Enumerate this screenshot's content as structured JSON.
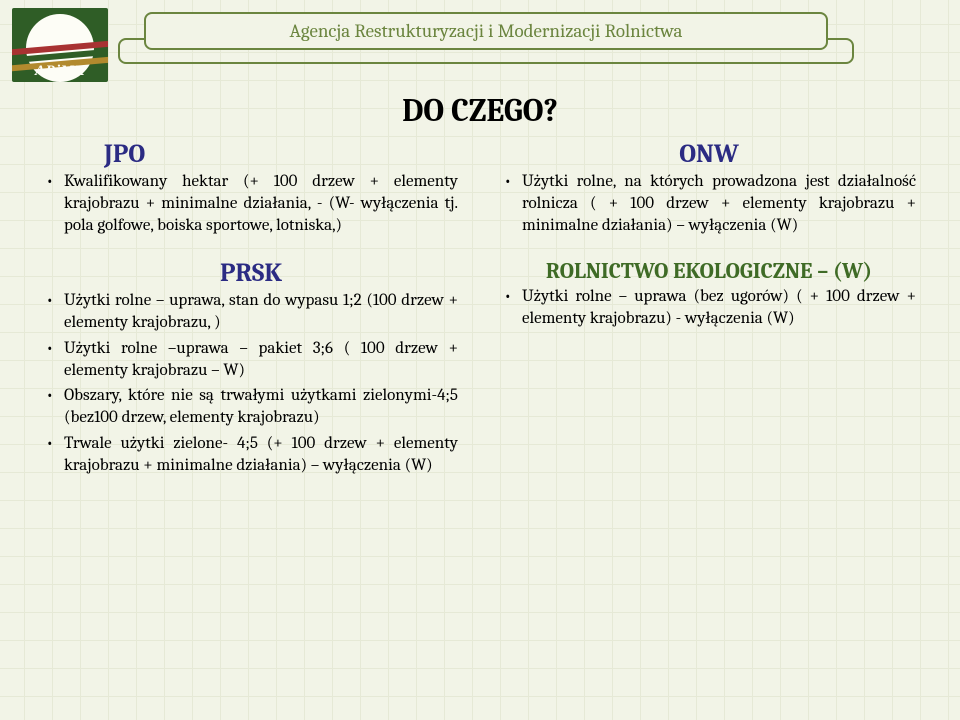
{
  "header": {
    "agency_name": "Agencja Restrukturyzacji i Modernizacji Rolnictwa",
    "logo_text": "ARiMR"
  },
  "title": "DO CZEGO?",
  "left": {
    "section1": {
      "heading": "JPO",
      "items": [
        "Kwalifikowany hektar (+ 100 drzew + elementy krajobrazu + minimalne działania, - (W- wyłączenia tj. pola golfowe, boiska sportowe, lotniska,)"
      ]
    },
    "section2": {
      "heading": "PRSK",
      "items": [
        "Użytki rolne – uprawa, stan do wypasu 1;2 (100 drzew + elementy krajobrazu, )",
        "Użytki rolne –uprawa – pakiet 3;6 ( 100 drzew + elementy krajobrazu – W)",
        "Obszary, które nie są trwałymi użytkami zielonymi-4;5 (bez100 drzew, elementy krajobrazu)",
        "Trwale użytki zielone- 4;5 (+ 100 drzew + elementy krajobrazu + minimalne działania) – wyłączenia (W)"
      ]
    }
  },
  "right": {
    "section1": {
      "heading": "ONW",
      "items": [
        "Użytki rolne, na których prowadzona jest działalność rolnicza ( + 100 drzew + elementy krajobrazu + minimalne działania) – wyłączenia (W)"
      ]
    },
    "section2": {
      "heading": "ROLNICTWO EKOLOGICZNE – (W)",
      "items": [
        "Użytki rolne – uprawa (bez ugorów) ( + 100 drzew + elementy krajobrazu)  - wyłączenia (W)"
      ]
    }
  },
  "colors": {
    "background": "#f2f4e7",
    "grid_line": "#e6e9d6",
    "accent_green": "#6b853f",
    "heading_blue": "#2b2b83",
    "heading_green": "#3f6b26",
    "logo_bg": "#2f5d26",
    "logo_red": "#a83232",
    "logo_gold": "#b28a2e"
  }
}
